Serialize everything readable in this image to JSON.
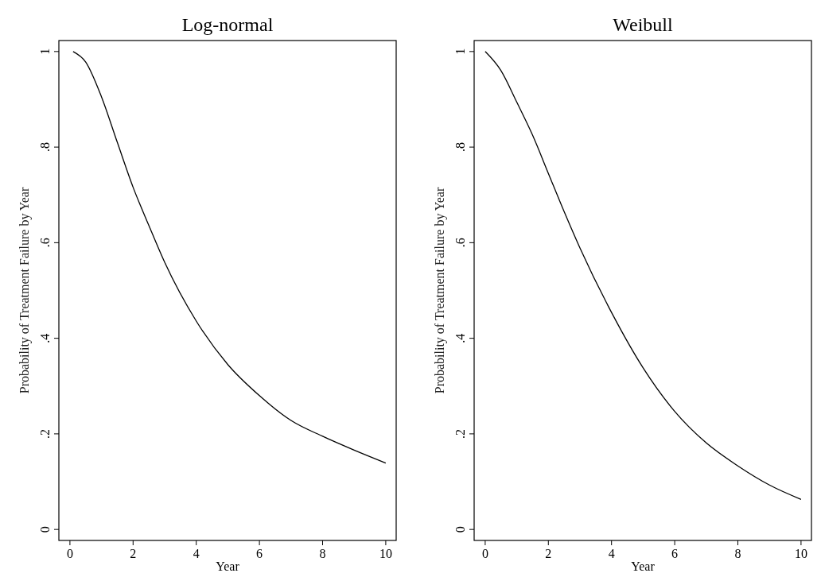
{
  "chart_data": [
    {
      "type": "line",
      "title": "Log-normal",
      "xlabel": "Year",
      "ylabel": "Probability of Treatment Failure by Year",
      "x": [
        0.1,
        0.5,
        1,
        1.5,
        2,
        2.5,
        3,
        4,
        5,
        6,
        7,
        8,
        9,
        10
      ],
      "series": [
        {
          "color": "#000000",
          "values": [
            1.0,
            0.978,
            0.905,
            0.81,
            0.716,
            0.636,
            0.559,
            0.436,
            0.345,
            0.28,
            0.228,
            0.195,
            0.166,
            0.139
          ]
        }
      ],
      "xlim": [
        -0.35,
        10.33
      ],
      "xticks": [
        0,
        2,
        4,
        6,
        8,
        10
      ],
      "ylim": [
        -0.023,
        1.023
      ],
      "yticks": [
        {
          "value": 0,
          "label": "0"
        },
        {
          "value": 0.2,
          "label": ".2"
        },
        {
          "value": 0.4,
          "label": ".4"
        },
        {
          "value": 0.6,
          "label": ".6"
        },
        {
          "value": 0.8,
          "label": ".8"
        },
        {
          "value": 1,
          "label": "1"
        }
      ],
      "grid": false,
      "marker": "none",
      "line_style": "solid"
    },
    {
      "type": "line",
      "title": "Weibull",
      "xlabel": "Year",
      "ylabel": "Probability of Treatment Failure by Year",
      "x": [
        0,
        0.5,
        1,
        1.5,
        2,
        2.5,
        3,
        4,
        5,
        6,
        7,
        8,
        9,
        10
      ],
      "series": [
        {
          "color": "#000000",
          "values": [
            1.0,
            0.96,
            0.894,
            0.825,
            0.745,
            0.665,
            0.589,
            0.454,
            0.338,
            0.247,
            0.181,
            0.133,
            0.093,
            0.063
          ]
        }
      ],
      "xlim": [
        -0.35,
        10.33
      ],
      "xticks": [
        0,
        2,
        4,
        6,
        8,
        10
      ],
      "ylim": [
        -0.023,
        1.023
      ],
      "yticks": [
        {
          "value": 0,
          "label": "0"
        },
        {
          "value": 0.2,
          "label": ".2"
        },
        {
          "value": 0.4,
          "label": ".4"
        },
        {
          "value": 0.6,
          "label": ".6"
        },
        {
          "value": 0.8,
          "label": ".8"
        },
        {
          "value": 1,
          "label": "1"
        }
      ],
      "grid": false,
      "marker": "none",
      "line_style": "solid"
    }
  ]
}
